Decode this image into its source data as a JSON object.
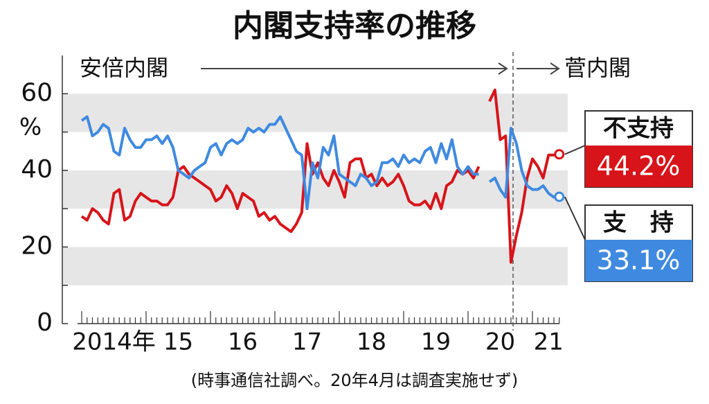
{
  "chart_data": {
    "type": "line",
    "title": "内閣支持率の推移",
    "note": "(時事通信社調べ。20年4月は調査実施せず)",
    "annotations": [
      "安倍内閣",
      "菅内閣"
    ],
    "y_unit": "%",
    "categories": [
      null,
      null,
      null,
      null,
      null,
      null,
      "2014年",
      null,
      null,
      null,
      null,
      null,
      null,
      null,
      null,
      null,
      null,
      null,
      "15",
      null,
      null,
      null,
      null,
      null,
      null,
      null,
      null,
      null,
      null,
      null,
      "16",
      null,
      null,
      null,
      null,
      null,
      null,
      null,
      null,
      null,
      null,
      null,
      "17",
      null,
      null,
      null,
      null,
      null,
      null,
      null,
      null,
      null,
      null,
      null,
      "18",
      null,
      null,
      null,
      null,
      null,
      null,
      null,
      null,
      null,
      null,
      null,
      "19",
      null,
      null,
      null,
      null,
      null,
      null,
      null,
      null,
      null,
      null,
      null,
      "20",
      null,
      null,
      null,
      null,
      null,
      null,
      null,
      null,
      "21",
      null,
      null
    ],
    "ylim": [
      0,
      70
    ],
    "yticks": [
      0,
      20,
      40,
      60
    ],
    "series": [
      {
        "name": "不支持",
        "color": "#d7141a",
        "values": [
          28,
          27,
          30,
          29,
          27,
          26,
          34,
          35,
          27,
          28,
          32,
          34,
          33,
          32,
          32,
          31,
          31,
          33,
          40,
          41,
          39,
          38,
          37,
          36,
          35,
          32,
          33,
          36,
          34,
          30,
          34,
          33,
          32,
          28,
          29,
          27,
          28,
          26,
          25,
          24,
          26,
          29,
          47,
          39,
          42,
          38,
          36,
          40,
          37,
          33,
          42,
          43,
          43,
          38,
          39,
          36,
          38,
          36,
          37,
          39,
          36,
          32,
          31,
          31,
          32,
          30,
          34,
          30,
          36,
          37,
          40,
          39,
          40,
          38,
          41,
          null,
          58,
          61,
          48,
          49,
          16,
          23,
          29,
          38,
          43,
          41,
          38,
          44,
          44,
          44.2
        ],
        "value_labels": [
          null,
          null,
          null,
          null,
          null,
          null,
          null,
          null,
          null,
          null,
          null,
          null,
          null,
          null,
          null,
          null,
          null,
          null,
          null,
          null,
          null,
          null,
          null,
          null,
          null,
          null,
          null,
          null,
          null,
          null,
          null,
          null,
          null,
          null,
          null,
          null,
          null,
          null,
          null,
          null,
          null,
          null,
          null,
          null,
          null,
          null,
          null,
          null,
          null,
          null,
          null,
          null,
          null,
          null,
          null,
          null,
          null,
          null,
          null,
          null,
          null,
          null,
          null,
          null,
          null,
          null,
          null,
          null,
          null,
          null,
          null,
          null,
          null,
          null,
          null,
          null,
          null,
          null,
          null,
          null,
          null,
          null,
          null,
          null,
          null,
          null,
          null,
          null,
          null,
          "44.2%"
        ]
      },
      {
        "name": "支　持",
        "color": "#3f8ae0",
        "values": [
          53,
          54,
          49,
          50,
          52,
          51,
          45,
          44,
          51,
          48,
          46,
          46,
          48,
          48,
          49,
          47,
          49,
          46,
          40,
          39,
          38,
          40,
          41,
          42,
          46,
          47,
          44,
          47,
          48,
          47,
          48,
          51,
          50,
          51,
          50,
          52,
          52,
          54,
          51,
          48,
          45,
          44,
          30,
          42,
          38,
          46,
          44,
          49,
          39,
          38,
          37,
          36,
          39,
          38,
          36,
          37,
          42,
          42,
          43,
          41,
          44,
          42,
          43,
          42,
          45,
          46,
          42,
          47,
          43,
          48,
          41,
          39,
          41,
          39,
          39,
          null,
          37,
          38,
          35,
          33,
          51,
          47,
          40,
          36,
          35,
          35,
          36,
          34,
          33,
          33.1
        ],
        "value_labels": [
          null,
          null,
          null,
          null,
          null,
          null,
          null,
          null,
          null,
          null,
          null,
          null,
          null,
          null,
          null,
          null,
          null,
          null,
          null,
          null,
          null,
          null,
          null,
          null,
          null,
          null,
          null,
          null,
          null,
          null,
          null,
          null,
          null,
          null,
          null,
          null,
          null,
          null,
          null,
          null,
          null,
          null,
          null,
          null,
          null,
          null,
          null,
          null,
          null,
          null,
          null,
          null,
          null,
          null,
          null,
          null,
          null,
          null,
          null,
          null,
          null,
          null,
          null,
          null,
          null,
          null,
          null,
          null,
          null,
          null,
          null,
          null,
          null,
          null,
          null,
          null,
          null,
          null,
          null,
          null,
          null,
          null,
          null,
          null,
          null,
          null,
          null,
          null,
          null,
          "33.1%"
        ]
      }
    ]
  }
}
